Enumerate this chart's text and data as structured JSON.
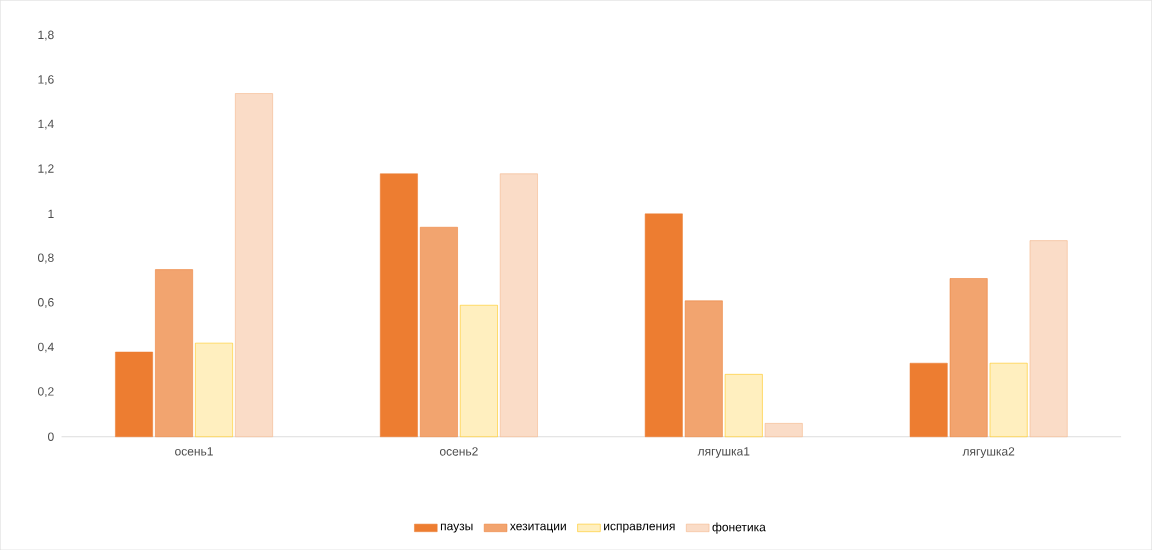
{
  "chart_data": {
    "type": "bar",
    "categories": [
      "осень1",
      "осень2",
      "лягушка1",
      "лягушка2"
    ],
    "series": [
      {
        "name": "паузы",
        "color": "#ed7d31",
        "values": [
          0.38,
          1.18,
          1.0,
          0.33
        ]
      },
      {
        "name": "хезитации",
        "color": "#ed7d31",
        "values": [
          0.75,
          0.94,
          0.61,
          0.71
        ]
      },
      {
        "name": "исправления",
        "color": "#ffc000",
        "values": [
          0.42,
          0.59,
          0.28,
          0.33
        ]
      },
      {
        "name": "фонетика",
        "color": "#f4b183",
        "values": [
          1.54,
          1.18,
          0.06,
          0.88
        ]
      }
    ],
    "ylim": [
      0,
      1.8
    ],
    "yticks": [
      0,
      {
        "value": 0.2,
        "label": "0,2"
      },
      {
        "value": 0.4,
        "label": "0,4"
      },
      {
        "value": 0.6,
        "label": "0,6"
      },
      {
        "value": 0.8,
        "label": "0,8"
      },
      1,
      {
        "value": 1.2,
        "label": "1,2"
      },
      {
        "value": 1.4,
        "label": "1,4"
      },
      {
        "value": 1.6,
        "label": "1,6"
      },
      {
        "value": 1.8,
        "label": "1,8"
      }
    ],
    "grid": false,
    "legend": "bottom"
  }
}
